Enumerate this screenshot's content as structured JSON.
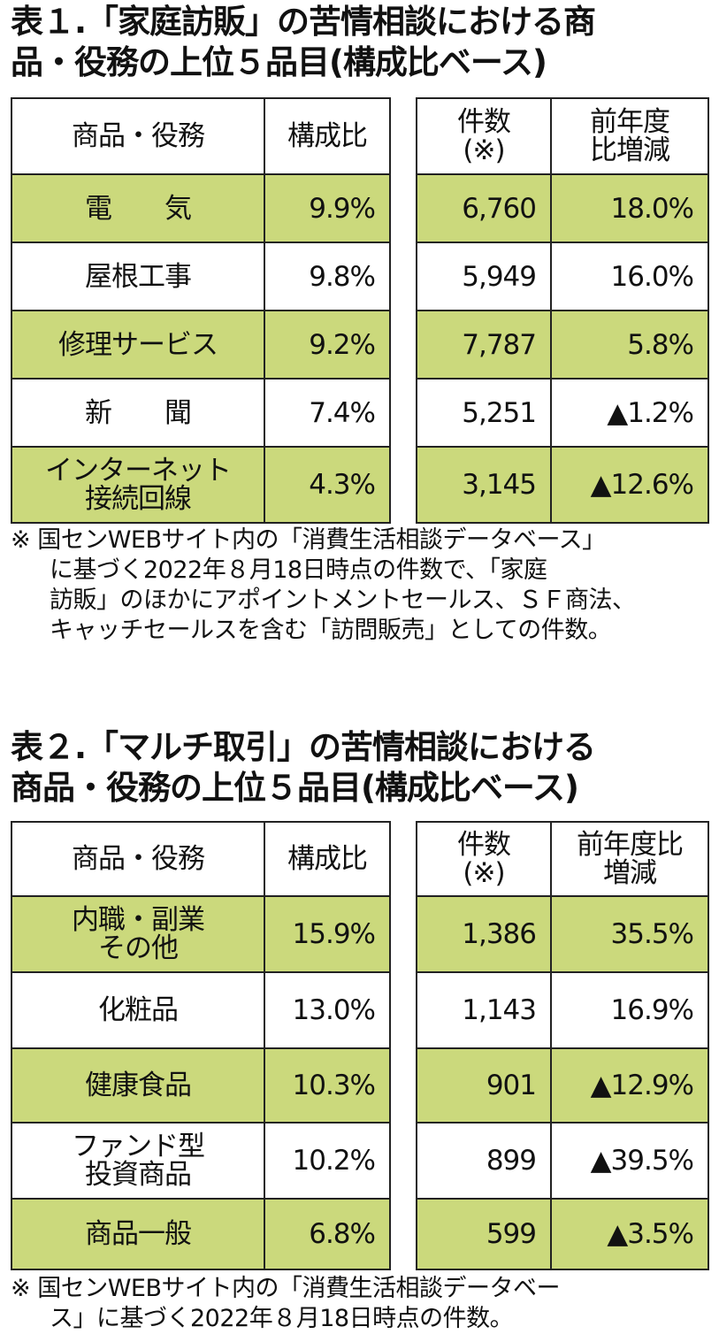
{
  "tables": [
    {
      "title": "表１.「家庭訪販」の苦情相談における商\n品・役務の上位５品目(構成比ベース)",
      "header": [
        "商品・役務",
        "構成比",
        "件数\n(※)",
        "前年度\n比増減"
      ],
      "rows": [
        [
          "電　　気",
          "9.9%",
          "6,760",
          "18.0%"
        ],
        [
          "屋根工事",
          "9.8%",
          "5,949",
          "16.0%"
        ],
        [
          "修理サービス",
          "9.2%",
          "7,787",
          "5.8%"
        ],
        [
          "新　　聞",
          "7.4%",
          "5,251",
          "▲1.2%"
        ],
        [
          "インターネット\n接続回線",
          "4.3%",
          "3,145",
          "▲12.6%"
        ]
      ],
      "note": "※ 国センWEBサイト内の「消費生活相談データベース」\nに基づく2022年８月18日時点の件数で、「家庭\n訪販」のほかにアポイントメントセールス、ＳＦ商法、\nキャッチセールスを含む「訪問販売」としての件数。"
    },
    {
      "title": "表２.「マルチ取引」の苦情相談における\n商品・役務の上位５品目(構成比ベース)",
      "header": [
        "商品・役務",
        "構成比",
        "件数\n(※)",
        "前年度比\n増減"
      ],
      "rows": [
        [
          "内職・副業\nその他",
          "15.9%",
          "1,386",
          "35.5%"
        ],
        [
          "化粧品",
          "13.0%",
          "1,143",
          "16.9%"
        ],
        [
          "健康食品",
          "10.3%",
          "901",
          "▲12.9%"
        ],
        [
          "ファンド型\n投資商品",
          "10.2%",
          "899",
          "▲39.5%"
        ],
        [
          "商品一般",
          "6.8%",
          "599",
          "▲3.5%"
        ]
      ],
      "note": "※ 国センWEBサイト内の「消費生活相談データベー\nス」に基づく2022年８月18日時点の件数。"
    }
  ]
}
